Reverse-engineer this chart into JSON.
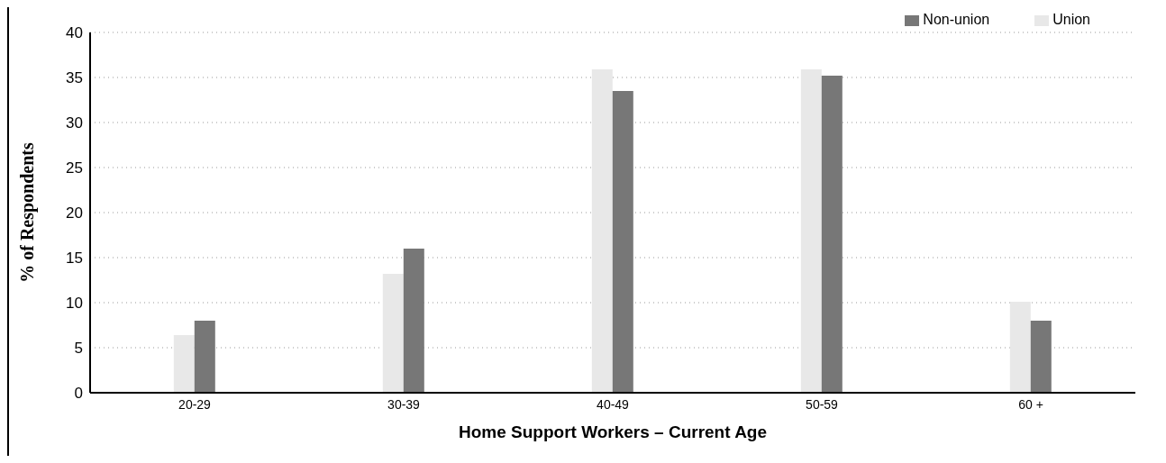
{
  "chart_data": {
    "type": "bar",
    "xlabel": "Home Support Workers – Current Age",
    "ylabel": "% of Respondents",
    "categories": [
      "20-29",
      "30-39",
      "40-49",
      "50-59",
      "60 +"
    ],
    "series": [
      {
        "name": "Union",
        "color": "#e8e8e8",
        "values": [
          6.4,
          13.2,
          35.9,
          35.9,
          10.1
        ]
      },
      {
        "name": "Non-union",
        "color": "#777777",
        "values": [
          8.0,
          16.0,
          33.5,
          35.2,
          8.0
        ]
      }
    ],
    "ylim": [
      0,
      40
    ],
    "yticks": [
      0,
      5,
      10,
      15,
      20,
      25,
      30,
      35,
      40
    ],
    "grid": "y",
    "legend": "top right"
  }
}
